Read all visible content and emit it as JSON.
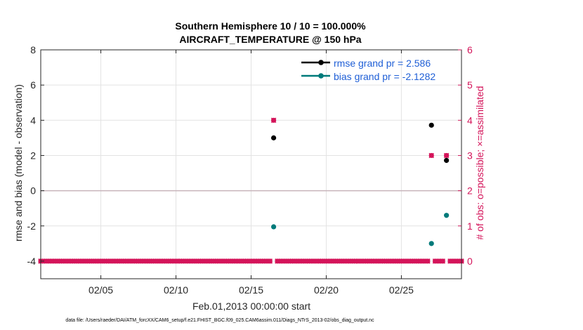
{
  "chart_data": {
    "type": "scatter",
    "title": "Southern Hemisphere 10 / 10 = 100.000%",
    "subtitle": "AIRCRAFT_TEMPERATURE @ 150 hPa",
    "xlabel": "Feb.01,2013 00:00:00 start",
    "ylabel": "rmse and bias (model - observation)",
    "ylabel_right": "# of obs: o=possible; ×=assimilated",
    "x_range": [
      1,
      29
    ],
    "ylim": [
      -5,
      8
    ],
    "ylim_right": [
      -0.5,
      6
    ],
    "x_ticks": [
      5,
      10,
      15,
      20,
      25
    ],
    "x_tick_labels": [
      "02/05",
      "02/10",
      "02/15",
      "02/20",
      "02/25"
    ],
    "y_ticks": [
      -4,
      -2,
      0,
      2,
      4,
      6,
      8
    ],
    "y_tick_labels": [
      "-4",
      "-2",
      "0",
      "2",
      "4",
      "6",
      "8"
    ],
    "y_right_ticks": [
      0,
      1,
      2,
      3,
      4,
      5,
      6
    ],
    "y_right_tick_labels": [
      "0",
      "1",
      "2",
      "3",
      "4",
      "5",
      "6"
    ],
    "grid": true,
    "zero_line": 0,
    "legend_position": "top-right",
    "series": [
      {
        "name": "rmse grand pr = 2.586",
        "color": "#000000",
        "marker": "circle",
        "axis": "left",
        "x": [
          16.5,
          27.0,
          28.0
        ],
        "y": [
          3.0,
          3.72,
          1.72
        ]
      },
      {
        "name": "bias grand pr = -2.1282",
        "color": "#007a7a",
        "marker": "circle",
        "axis": "left",
        "x": [
          16.5,
          27.0,
          28.0
        ],
        "y": [
          -2.05,
          -3.0,
          -1.4
        ]
      },
      {
        "name": "obs possible",
        "color": "#d4145a",
        "marker": "circle",
        "axis": "right",
        "x_start": 1.0,
        "x_step": 0.25,
        "count": 113,
        "overrides": [
          [
            16.5,
            4
          ],
          [
            27.0,
            3
          ],
          [
            28.0,
            3
          ]
        ],
        "default": 0
      },
      {
        "name": "obs assimilated",
        "color": "#d4145a",
        "marker": "x",
        "axis": "right",
        "x_start": 1.0,
        "x_step": 0.25,
        "count": 113,
        "overrides": [
          [
            16.5,
            4
          ],
          [
            27.0,
            3
          ],
          [
            28.0,
            3
          ]
        ],
        "default": 0
      }
    ],
    "legend": [
      {
        "label": "rmse grand pr = 2.586",
        "color": "#000000"
      },
      {
        "label": "bias grand pr = -2.1282",
        "color": "#007a7a"
      }
    ]
  },
  "footnote": "data file: /Users/raeder/DAI/ATM_forcXX/CAM6_setup/f.e21.FHIST_BGC.f09_025.CAM6assim.011/Diags_NTrS_2013-02/obs_diag_output.nc"
}
